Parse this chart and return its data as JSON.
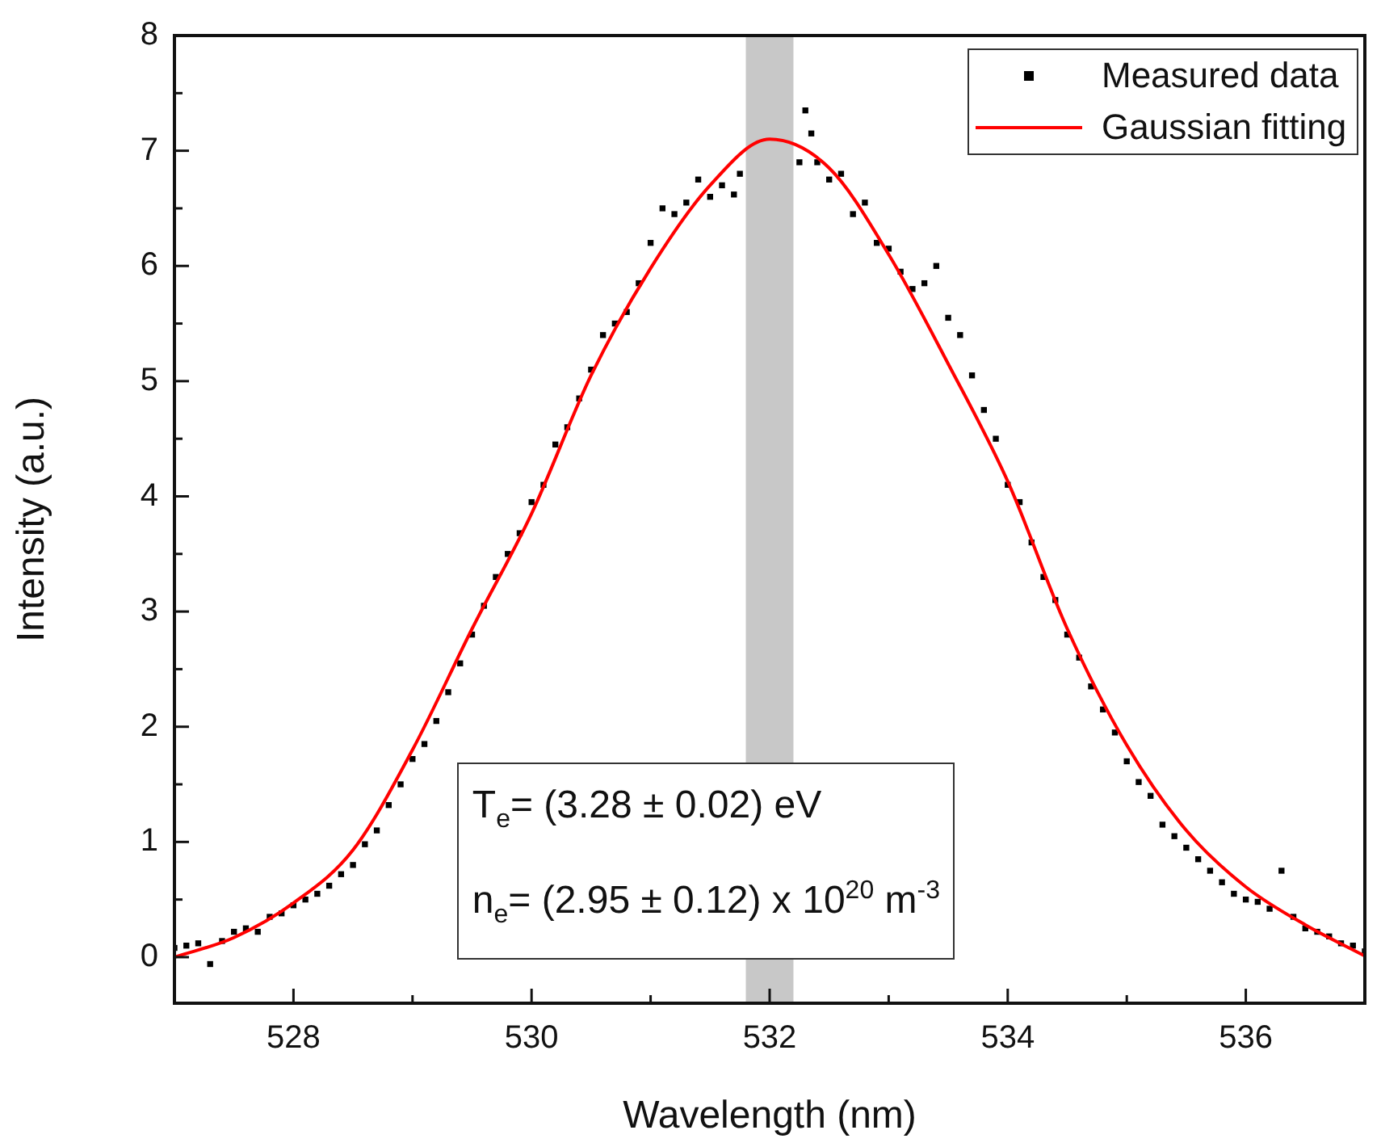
{
  "chart_data": {
    "type": "scatter",
    "xlabel": "Wavelength (nm)",
    "ylabel": "Intensity (a.u.)",
    "xlim": [
      527,
      537
    ],
    "xticks": [
      {
        "value": 527,
        "label": null
      },
      528,
      {
        "value": 529,
        "label": null
      },
      530,
      {
        "value": 531,
        "label": null
      },
      532,
      {
        "value": 533,
        "label": null
      },
      534,
      {
        "value": 535,
        "label": null
      },
      536,
      {
        "value": 537,
        "label": null
      }
    ],
    "ylim": [
      -0.4,
      8
    ],
    "yticks": [
      0,
      {
        "value": 0.5,
        "label": null
      },
      1,
      {
        "value": 1.5,
        "label": null
      },
      2,
      {
        "value": 2.5,
        "label": null
      },
      3,
      {
        "value": 3.5,
        "label": null
      },
      4,
      {
        "value": 4.5,
        "label": null
      },
      5,
      {
        "value": 5.5,
        "label": null
      },
      6,
      {
        "value": 6.5,
        "label": null
      },
      7,
      {
        "value": 7.5,
        "label": null
      },
      8
    ],
    "grid": false,
    "legend": "top right",
    "bands": [
      {
        "axis": "x",
        "from": 531.8,
        "to": 532.2,
        "color": "#c8c8c8"
      }
    ],
    "annotations": [
      "T$_{e}$= (3.28 ± 0.02) eV",
      "n$_{e}$= (2.95 ± 0.12) x 10$^{20}$ m$^{-3}$"
    ],
    "series": [
      {
        "name": "Measured data",
        "color": "#000000",
        "marker": "square",
        "x": [
          527.0,
          527.1,
          527.2,
          527.3,
          527.4,
          527.5,
          527.6,
          527.7,
          527.8,
          527.9,
          528.0,
          528.1,
          528.2,
          528.3,
          528.4,
          528.5,
          528.6,
          528.7,
          528.8,
          528.9,
          529.0,
          529.1,
          529.2,
          529.3,
          529.4,
          529.5,
          529.6,
          529.7,
          529.8,
          529.9,
          530.0,
          530.1,
          530.2,
          530.3,
          530.4,
          530.5,
          530.6,
          530.7,
          530.8,
          530.9,
          531.0,
          531.1,
          531.2,
          531.3,
          531.4,
          531.5,
          531.6,
          531.7,
          531.75,
          532.25,
          532.3,
          532.35,
          532.4,
          532.5,
          532.6,
          532.7,
          532.8,
          532.9,
          533.0,
          533.1,
          533.2,
          533.3,
          533.4,
          533.5,
          533.6,
          533.7,
          533.8,
          533.9,
          534.0,
          534.1,
          534.2,
          534.3,
          534.4,
          534.5,
          534.6,
          534.7,
          534.8,
          534.9,
          535.0,
          535.1,
          535.2,
          535.3,
          535.4,
          535.5,
          535.6,
          535.7,
          535.8,
          535.9,
          536.0,
          536.1,
          536.2,
          536.3,
          536.4,
          536.5,
          536.6,
          536.7,
          536.8,
          536.9,
          537.0
        ],
        "values": [
          0.08,
          0.1,
          0.12,
          -0.06,
          0.14,
          0.22,
          0.25,
          0.22,
          0.35,
          0.38,
          0.45,
          0.5,
          0.55,
          0.62,
          0.72,
          0.8,
          0.98,
          1.1,
          1.32,
          1.5,
          1.72,
          1.85,
          2.05,
          2.3,
          2.55,
          2.8,
          3.05,
          3.3,
          3.5,
          3.68,
          3.95,
          4.1,
          4.45,
          4.6,
          4.85,
          5.1,
          5.4,
          5.5,
          5.6,
          5.85,
          6.2,
          6.5,
          6.45,
          6.55,
          6.75,
          6.6,
          6.7,
          6.62,
          6.8,
          6.9,
          7.35,
          7.15,
          6.9,
          6.75,
          6.8,
          6.45,
          6.55,
          6.2,
          6.15,
          5.95,
          5.8,
          5.85,
          6.0,
          5.55,
          5.4,
          5.05,
          4.75,
          4.5,
          4.1,
          3.95,
          3.6,
          3.3,
          3.1,
          2.8,
          2.6,
          2.35,
          2.15,
          1.95,
          1.7,
          1.52,
          1.4,
          1.15,
          1.05,
          0.95,
          0.85,
          0.75,
          0.65,
          0.55,
          0.5,
          0.48,
          0.42,
          0.75,
          0.35,
          0.25,
          0.22,
          0.18,
          0.12,
          0.1,
          0.05
        ]
      },
      {
        "name": "Gaussian fitting",
        "type": "line",
        "color": "#ff0000",
        "marker": "none",
        "line_style": "solid",
        "x": [
          527,
          527.5,
          528,
          528.5,
          529,
          529.5,
          530,
          530.5,
          531,
          531.5,
          532,
          532.5,
          533,
          533.5,
          534,
          534.5,
          535,
          535.5,
          536,
          536.5,
          537
        ],
        "values": [
          0.0,
          0.17,
          0.47,
          0.93,
          1.8,
          2.85,
          3.85,
          5.05,
          5.98,
          6.7,
          7.1,
          6.85,
          6.1,
          5.15,
          4.13,
          2.85,
          1.84,
          1.1,
          0.61,
          0.28,
          0.01
        ]
      }
    ]
  }
}
